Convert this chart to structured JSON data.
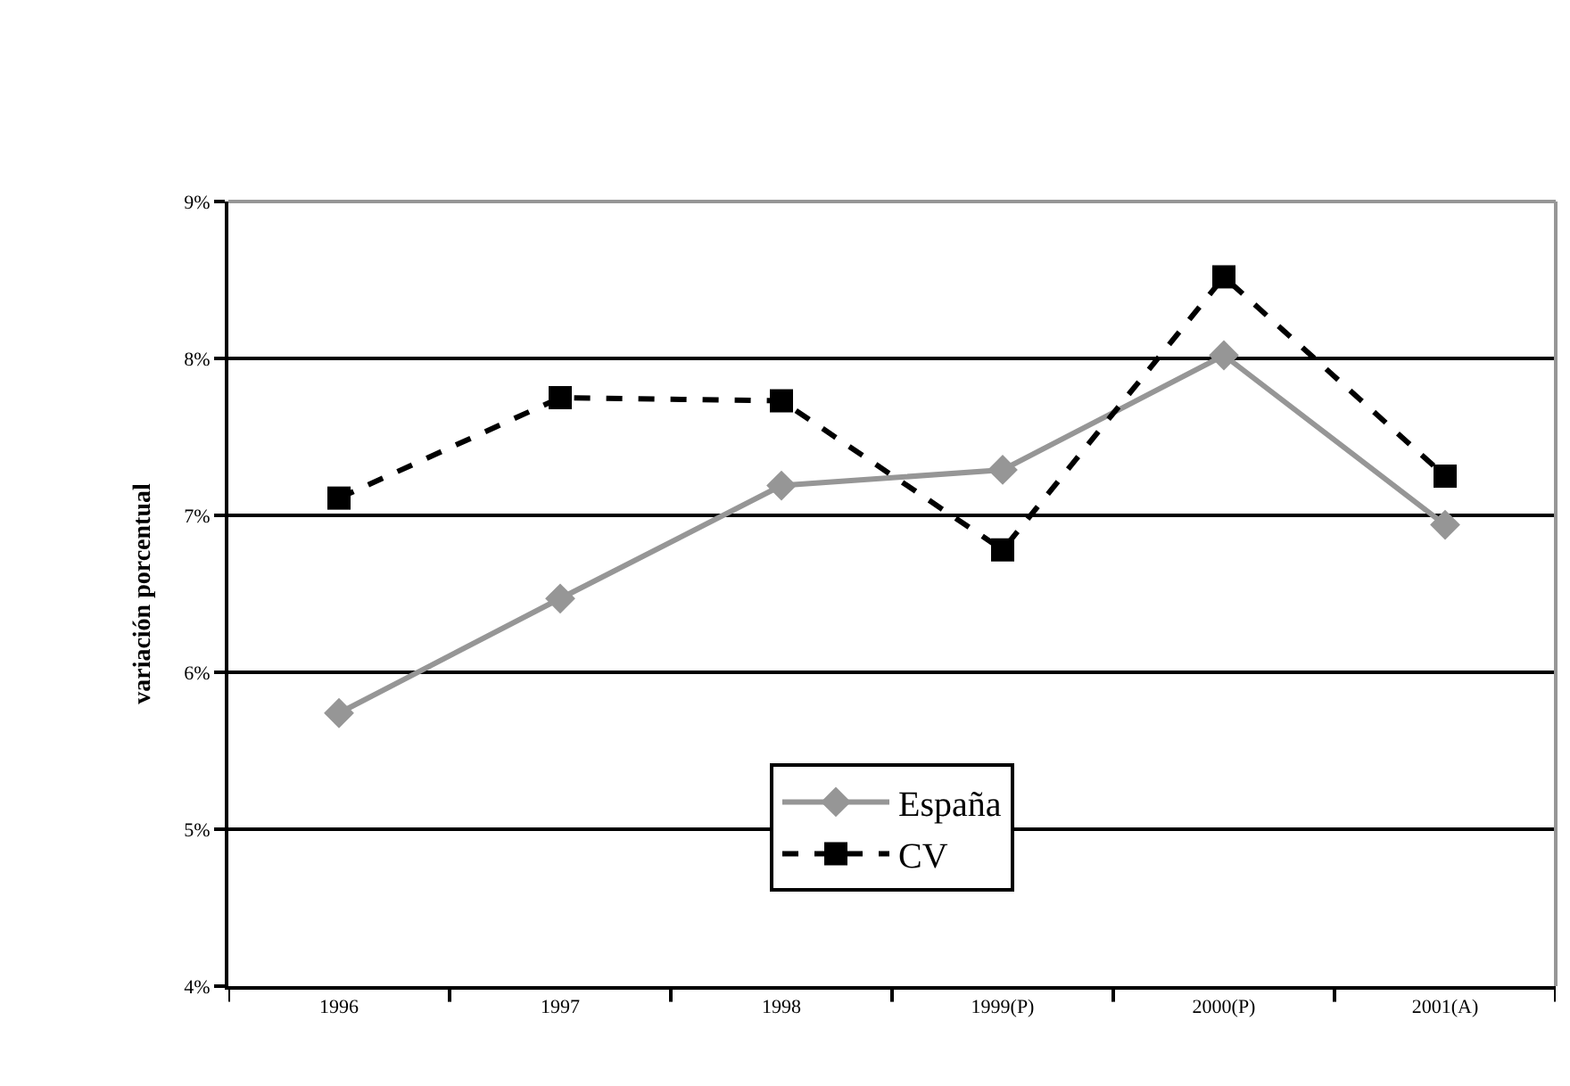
{
  "chart_data": {
    "type": "line",
    "ylabel": "variación porcentual",
    "categories": [
      "1996",
      "1997",
      "1998",
      "1999(P)",
      "2000(P)",
      "2001(A)"
    ],
    "series": [
      {
        "name": "España",
        "color": "#969696",
        "values": [
          5.74,
          6.47,
          7.19,
          7.29,
          8.02,
          6.94
        ],
        "marker": "diamond",
        "line_style": "solid"
      },
      {
        "name": "CV",
        "color": "#000000",
        "values": [
          7.11,
          7.75,
          7.73,
          6.78,
          8.52,
          7.25
        ],
        "marker": "square",
        "line_style": "dashed"
      }
    ],
    "ylim": [
      4,
      9
    ],
    "yticks": [
      {
        "value": 4,
        "label": "4%"
      },
      {
        "value": 5,
        "label": "5%"
      },
      {
        "value": 6,
        "label": "6%"
      },
      {
        "value": 7,
        "label": "7%"
      },
      {
        "value": 8,
        "label": "8%"
      },
      {
        "value": 9,
        "label": "9%"
      }
    ],
    "grid": "y",
    "legend": "bottom"
  }
}
